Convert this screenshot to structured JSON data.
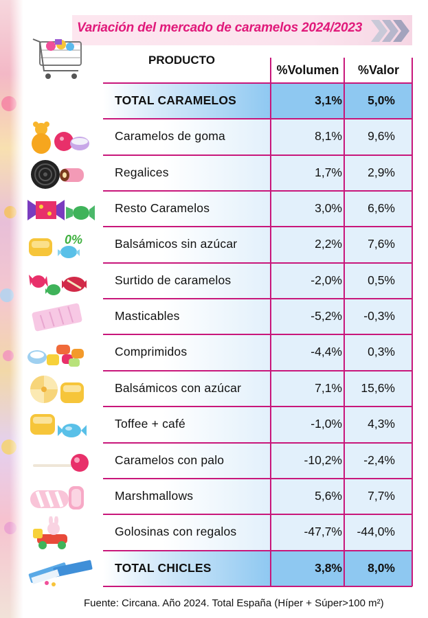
{
  "title": "Variación del mercado de caramelos 2024/2023",
  "colors": {
    "title": "#e0197a",
    "grid": "#c8167a",
    "total_fill": "#8ec8f1",
    "row_fill": "#e2f0fb"
  },
  "chart_data": {
    "type": "table",
    "columns": [
      "PRODUCTO",
      "%Volumen",
      "%Valor"
    ],
    "rows": [
      {
        "producto": "TOTAL CARAMELOS",
        "volumen": "3,1%",
        "valor": "5,0%",
        "icon": "shopping-cart-icon",
        "total": true
      },
      {
        "producto": "Caramelos de goma",
        "volumen": "8,1%",
        "valor": "9,6%",
        "icon": "gummy-bear-icon"
      },
      {
        "producto": "Regalices",
        "volumen": "1,7%",
        "valor": "2,9%",
        "icon": "licorice-icon"
      },
      {
        "producto": "Resto Caramelos",
        "volumen": "3,0%",
        "valor": "6,6%",
        "icon": "wrapped-candy-icon"
      },
      {
        "producto": "Balsámicos sin azúcar",
        "volumen": "2,2%",
        "valor": "7,6%",
        "icon": "sugar-free-candy-icon",
        "badge": "0%"
      },
      {
        "producto": "Surtido de caramelos",
        "volumen": "-2,0%",
        "valor": "0,5%",
        "icon": "assorted-candy-icon"
      },
      {
        "producto": "Masticables",
        "volumen": "-5,2%",
        "valor": "-0,3%",
        "icon": "chewy-candy-icon"
      },
      {
        "producto": "Comprimidos",
        "volumen": "-4,4%",
        "valor": "0,3%",
        "icon": "tablet-candy-icon"
      },
      {
        "producto": "Balsámicos con azúcar",
        "volumen": "7,1%",
        "valor": "15,6%",
        "icon": "balsamic-candy-icon"
      },
      {
        "producto": "Toffee + café",
        "volumen": "-1,0%",
        "valor": "4,3%",
        "icon": "toffee-icon"
      },
      {
        "producto": "Caramelos con palo",
        "volumen": "-10,2%",
        "valor": "-2,4%",
        "icon": "lollipop-icon"
      },
      {
        "producto": "Marshmallows",
        "volumen": "5,6%",
        "valor": "7,7%",
        "icon": "marshmallow-icon"
      },
      {
        "producto": "Golosinas con regalos",
        "volumen": "-47,7%",
        "valor": "-44,0%",
        "icon": "toy-candy-icon"
      },
      {
        "producto": "TOTAL CHICLES",
        "volumen": "3,8%",
        "valor": "8,0%",
        "icon": "chewing-gum-icon",
        "total": true
      }
    ]
  },
  "footer": "Fuente: Circana. Año 2024. Total España (Híper + Súper>100 m²)"
}
